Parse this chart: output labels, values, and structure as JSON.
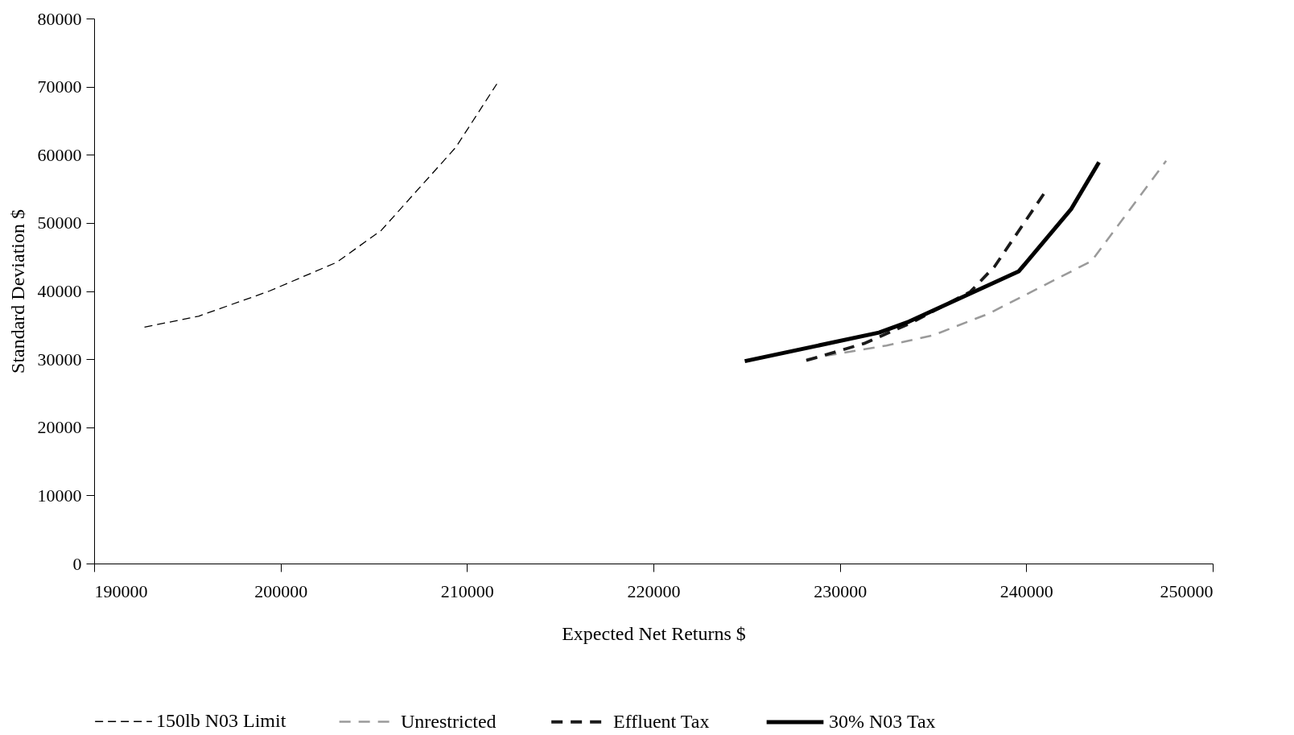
{
  "chart_data": {
    "type": "line",
    "xlabel": "Expected Net Returns $",
    "ylabel": "Standard Deviation $",
    "xlim": [
      190000,
      250000
    ],
    "xticks": [
      190000,
      200000,
      210000,
      220000,
      230000,
      240000,
      250000
    ],
    "ylim": [
      0,
      80000
    ],
    "yticks": [
      0,
      10000,
      20000,
      30000,
      40000,
      50000,
      60000,
      70000,
      80000
    ],
    "grid": false,
    "legend": "bottom",
    "marker": "none",
    "series": [
      {
        "name": "150lb N03 Limit",
        "color": "#000000",
        "line_style": "dashed",
        "x": [
          192700,
          195600,
          199400,
          203000,
          205400,
          209400,
          211600
        ],
        "values": [
          34700,
          36300,
          40000,
          44200,
          48900,
          61100,
          70400
        ]
      },
      {
        "name": "Unrestricted",
        "color": "#9a9a9a",
        "line_style": "dashed",
        "x": [
          228200,
          232500,
          235000,
          238000,
          243500,
          247500
        ],
        "values": [
          30000,
          32000,
          33500,
          36700,
          44400,
          59100
        ]
      },
      {
        "name": "Effluent Tax",
        "color": "#1a1a1a",
        "line_style": "dashed",
        "x": [
          228200,
          231300,
          233800,
          237000,
          238300,
          241000
        ],
        "values": [
          29800,
          32300,
          35300,
          39900,
          43600,
          54500
        ]
      },
      {
        "name": "30% N03 Tax",
        "color": "#000000",
        "line_style": "solid",
        "x": [
          224900,
          232100,
          233700,
          239600,
          242400,
          243900
        ],
        "values": [
          29700,
          33900,
          35500,
          42900,
          52000,
          58900
        ]
      }
    ]
  }
}
